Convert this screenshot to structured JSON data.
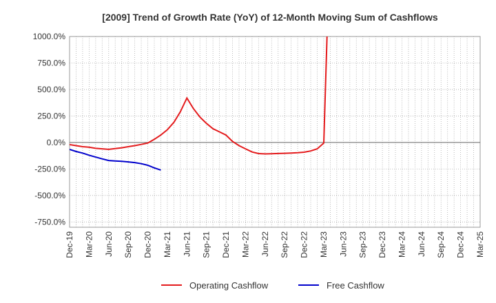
{
  "chart_data": {
    "type": "line",
    "title": "[2009]  Trend of Growth Rate (YoY) of 12-Month Moving Sum of Cashflows",
    "xlabel": "",
    "ylabel": "",
    "ylim": [
      -800,
      1000
    ],
    "y_ticks": [
      1000,
      750,
      500,
      250,
      0,
      -250,
      -500,
      -750
    ],
    "y_tick_labels": [
      "1000.0%",
      "750.0%",
      "500.0%",
      "250.0%",
      "0.0%",
      "-250.0%",
      "-500.0%",
      "-750.0%"
    ],
    "x_tick_labels": [
      "Dec-19",
      "Mar-20",
      "Jun-20",
      "Sep-20",
      "Dec-20",
      "Mar-21",
      "Jun-21",
      "Sep-21",
      "Dec-21",
      "Mar-22",
      "Jun-22",
      "Sep-22",
      "Dec-22",
      "Mar-23",
      "Jun-23",
      "Sep-23",
      "Dec-23",
      "Mar-24",
      "Jun-24",
      "Sep-24",
      "Dec-24",
      "Mar-25"
    ],
    "x_months": [
      "2019-12",
      "2020-01",
      "2020-02",
      "2020-03",
      "2020-04",
      "2020-05",
      "2020-06",
      "2020-07",
      "2020-08",
      "2020-09",
      "2020-10",
      "2020-11",
      "2020-12",
      "2021-01",
      "2021-02",
      "2021-03",
      "2021-04",
      "2021-05",
      "2021-06",
      "2021-07",
      "2021-08",
      "2021-09",
      "2021-10",
      "2021-11",
      "2021-12",
      "2022-01",
      "2022-02",
      "2022-03",
      "2022-04",
      "2022-05",
      "2022-06",
      "2022-07",
      "2022-08",
      "2022-09",
      "2022-10",
      "2022-11",
      "2022-12",
      "2023-01",
      "2023-02",
      "2023-03",
      "2023-04",
      "2023-05",
      "2023-06",
      "2023-07",
      "2023-08",
      "2023-09",
      "2023-10",
      "2023-11",
      "2023-12",
      "2024-01",
      "2024-02",
      "2024-03",
      "2024-04",
      "2024-05",
      "2024-06",
      "2024-07",
      "2024-08",
      "2024-09",
      "2024-10",
      "2024-11",
      "2024-12",
      "2025-01",
      "2025-02",
      "2025-03"
    ],
    "grid": true,
    "legend_position": "bottom",
    "series": [
      {
        "name": "Operating Cashflow",
        "color": "#e41a1c",
        "values": [
          -20,
          -30,
          -40,
          -45,
          -55,
          -60,
          -65,
          -58,
          -50,
          -40,
          -30,
          -18,
          -5,
          30,
          70,
          120,
          190,
          290,
          420,
          320,
          240,
          180,
          130,
          100,
          70,
          10,
          -30,
          -60,
          -90,
          -105,
          -108,
          -106,
          -104,
          -102,
          -100,
          -97,
          -92,
          -80,
          -60,
          -5,
          2000,
          null,
          null,
          null,
          null,
          null,
          null,
          null,
          null,
          null,
          null,
          null,
          null,
          null,
          null,
          null,
          null,
          null,
          null,
          null,
          null,
          null,
          null,
          null
        ]
      },
      {
        "name": "Free Cashflow",
        "color": "#0000cc",
        "values": [
          -65,
          -85,
          -100,
          -120,
          -138,
          -155,
          -170,
          -175,
          -178,
          -183,
          -190,
          -200,
          -215,
          -240,
          -260,
          null,
          null,
          null,
          null,
          null,
          null,
          null,
          null,
          null,
          null,
          null,
          null,
          null,
          null,
          null,
          null,
          null,
          null,
          null,
          null,
          null,
          null,
          null,
          null,
          null,
          null,
          null,
          null,
          null,
          null,
          null,
          null,
          null,
          null,
          null,
          null,
          null,
          null,
          null,
          null,
          null,
          null,
          null,
          null,
          null,
          null,
          null,
          null,
          null
        ]
      }
    ]
  },
  "legend": {
    "items": [
      {
        "label": "Operating Cashflow",
        "color": "#e41a1c"
      },
      {
        "label": "Free Cashflow",
        "color": "#0000cc"
      }
    ]
  }
}
